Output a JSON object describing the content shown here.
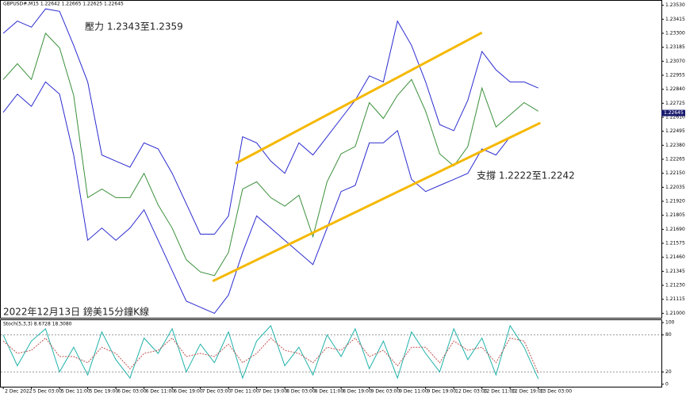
{
  "chart_data": [
    {
      "type": "line",
      "title": "GBPUSD#,M15  1.22642 1.22665 1.22625 1.22645",
      "x": [
        0,
        4,
        8,
        12,
        16,
        20,
        24,
        28,
        32,
        36,
        40,
        44,
        48,
        52,
        56,
        60,
        64,
        68,
        72,
        76,
        80,
        84,
        88,
        92,
        96,
        100,
        104,
        108,
        112,
        116,
        120,
        124,
        128,
        132,
        136,
        140,
        144,
        148,
        152
      ],
      "series": [
        {
          "color": "#3a8f3a",
          "values": [
            1.2292,
            1.2305,
            1.2292,
            1.233,
            1.2318,
            1.2279,
            1.2195,
            1.2202,
            1.2195,
            1.2195,
            1.2215,
            1.2189,
            1.217,
            1.2144,
            1.2134,
            1.2131,
            1.215,
            1.2202,
            1.2208,
            1.2195,
            1.2188,
            1.2197,
            1.2163,
            1.2208,
            1.2231,
            1.2237,
            1.2273,
            1.226,
            1.2279,
            1.2292,
            1.2266,
            1.2231,
            1.2221,
            1.2237,
            1.2285,
            1.2253,
            1.2263,
            1.2273,
            1.2266
          ]
        },
        {
          "color": "#2b2bd0",
          "values": [
            1.233,
            1.234,
            1.2335,
            1.235,
            1.2348,
            1.232,
            1.229,
            1.223,
            1.2225,
            1.222,
            1.224,
            1.2235,
            1.2215,
            1.219,
            1.2165,
            1.2165,
            1.218,
            1.2245,
            1.224,
            1.2225,
            1.2215,
            1.224,
            1.223,
            1.2245,
            1.226,
            1.2275,
            1.2295,
            1.229,
            1.234,
            1.232,
            1.229,
            1.2255,
            1.225,
            1.2275,
            1.2315,
            1.23,
            1.229,
            1.229,
            1.2285
          ]
        },
        {
          "color": "#2b2bd0",
          "values": [
            1.2265,
            1.228,
            1.227,
            1.229,
            1.228,
            1.223,
            1.216,
            1.217,
            1.216,
            1.217,
            1.2185,
            1.216,
            1.2135,
            1.211,
            1.2105,
            1.21,
            1.2115,
            1.215,
            1.218,
            1.217,
            1.216,
            1.215,
            1.214,
            1.217,
            1.22,
            1.2205,
            1.224,
            1.224,
            1.225,
            1.221,
            1.22,
            1.2205,
            1.221,
            1.2215,
            1.2235,
            1.223,
            1.2245,
            1.225,
            1.2255
          ]
        }
      ],
      "trendlines": [
        {
          "color": "#f5b800",
          "x": [
            66,
            136
          ],
          "y": [
            1.2223,
            1.23305
          ]
        },
        {
          "color": "#f5b800",
          "x": [
            59.5,
            152.6
          ],
          "y": [
            1.21264,
            1.22564
          ]
        }
      ],
      "annotations": [
        "壓力 1.2343至1.2359",
        "支撐 1.2222至1.2242",
        "2022年12月13日 鎊美15分鐘K線"
      ],
      "current_price": 1.22645,
      "xlim": [
        -0.7,
        187
      ],
      "ylim": [
        1.2097,
        1.2356
      ],
      "yticks": [
        {
          "value": 1.2353,
          "label": "1.23530"
        },
        {
          "value": 1.23415,
          "label": "1.23415"
        },
        {
          "value": 1.233,
          "label": "1.23300"
        },
        {
          "value": 1.23185,
          "label": "1.23185"
        },
        {
          "value": 1.2307,
          "label": "1.23070"
        },
        {
          "value": 1.22955,
          "label": "1.22955"
        },
        {
          "value": 1.2284,
          "label": "1.22840"
        },
        {
          "value": 1.22725,
          "label": "1.22725"
        },
        {
          "value": 1.2261,
          "label": "1.22610"
        },
        {
          "value": 1.22495,
          "label": "1.22495"
        },
        {
          "value": 1.2238,
          "label": "1.22380"
        },
        {
          "value": 1.22265,
          "label": "1.22265"
        },
        {
          "value": 1.2215,
          "label": "1.22150"
        },
        {
          "value": 1.22035,
          "label": "1.22035"
        },
        {
          "value": 1.2192,
          "label": "1.21920"
        },
        {
          "value": 1.21805,
          "label": "1.21805"
        },
        {
          "value": 1.2169,
          "label": "1.21690"
        },
        {
          "value": 1.21575,
          "label": "1.21575"
        },
        {
          "value": 1.2146,
          "label": "1.21460"
        },
        {
          "value": 1.21345,
          "label": "1.21345"
        },
        {
          "value": 1.2123,
          "label": "1.21230"
        },
        {
          "value": 1.21115,
          "label": "1.21115"
        },
        {
          "value": 1.21,
          "label": "1.21000"
        }
      ],
      "xticks": [
        {
          "value": 0,
          "label": "2 Dec 2022"
        },
        {
          "value": 8,
          "label": "5 Dec 03:00"
        },
        {
          "value": 16,
          "label": "5 Dec 11:00"
        },
        {
          "value": 24,
          "label": "5 Dec 19:00"
        },
        {
          "value": 32,
          "label": "6 Dec 03:00"
        },
        {
          "value": 40,
          "label": "6 Dec 11:00"
        },
        {
          "value": 48,
          "label": "6 Dec 19:00"
        },
        {
          "value": 56,
          "label": "7 Dec 03:00"
        },
        {
          "value": 64,
          "label": "7 Dec 11:00"
        },
        {
          "value": 72,
          "label": "7 Dec 19:00"
        },
        {
          "value": 80,
          "label": "8 Dec 03:00"
        },
        {
          "value": 88,
          "label": "8 Dec 11:00"
        },
        {
          "value": 96,
          "label": "8 Dec 19:00"
        },
        {
          "value": 104,
          "label": "9 Dec 03:00"
        },
        {
          "value": 112,
          "label": "9 Dec 11:00"
        },
        {
          "value": 120,
          "label": "9 Dec 19:00"
        },
        {
          "value": 128,
          "label": "12 Dec 03:00"
        },
        {
          "value": 136,
          "label": "12 Dec 11:00"
        },
        {
          "value": 144,
          "label": "12 Dec 19:00"
        },
        {
          "value": 152,
          "label": "13 Dec 03:00"
        }
      ]
    },
    {
      "type": "line",
      "title": "Stoch(5,3,3) 8.6728 18.3080",
      "x": [
        0,
        4,
        8,
        12,
        16,
        20,
        24,
        28,
        32,
        36,
        40,
        44,
        48,
        52,
        56,
        60,
        64,
        68,
        72,
        76,
        80,
        84,
        88,
        92,
        96,
        100,
        104,
        108,
        112,
        116,
        120,
        124,
        128,
        132,
        136,
        140,
        144,
        148,
        152
      ],
      "series": [
        {
          "color": "#20b2aa",
          "values": [
            80,
            30,
            70,
            90,
            20,
            60,
            15,
            85,
            40,
            10,
            75,
            50,
            90,
            20,
            65,
            35,
            85,
            10,
            70,
            95,
            30,
            60,
            15,
            80,
            45,
            90,
            25,
            70,
            10,
            85,
            50,
            20,
            90,
            40,
            75,
            15,
            95,
            60,
            9
          ]
        },
        {
          "color": "#c0504d",
          "values": [
            70,
            50,
            55,
            75,
            45,
            45,
            35,
            60,
            50,
            25,
            50,
            55,
            75,
            45,
            50,
            45,
            65,
            35,
            50,
            75,
            55,
            50,
            35,
            60,
            55,
            75,
            45,
            55,
            30,
            60,
            60,
            35,
            70,
            55,
            60,
            35,
            75,
            70,
            18
          ]
        }
      ],
      "levels": [
        80,
        20
      ],
      "xlim": [
        -0.7,
        187
      ],
      "ylim": [
        -4,
        104
      ],
      "yticks": [
        100,
        80,
        20,
        0
      ]
    }
  ]
}
